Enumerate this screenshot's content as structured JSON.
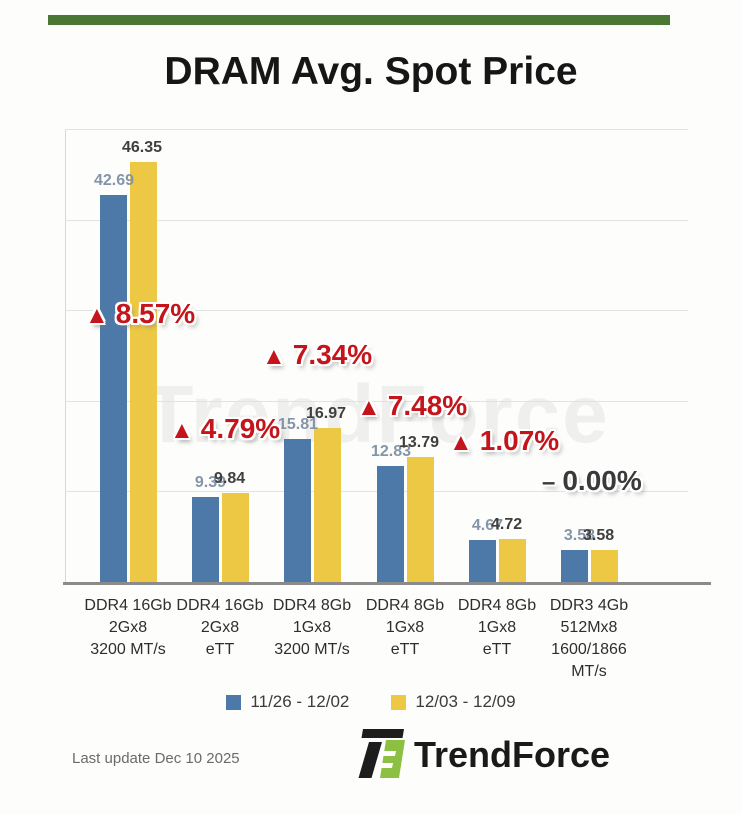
{
  "page": {
    "top_bar_color": "#4a7733",
    "background_color": "#fdfdfb"
  },
  "title": "DRAM Avg. Spot Price",
  "watermark": "TrendForce",
  "chart_data": {
    "type": "bar",
    "title": "DRAM Avg. Spot Price",
    "xlabel": "",
    "ylabel": "",
    "ylim": [
      0,
      50
    ],
    "grid": true,
    "grid_step": 10,
    "legend_position": "bottom",
    "categories": [
      [
        "DDR4 16Gb",
        "2Gx8",
        "3200 MT/s"
      ],
      [
        "DDR4 16Gb",
        "2Gx8",
        "eTT"
      ],
      [
        "DDR4 8Gb",
        "1Gx8",
        "3200 MT/s"
      ],
      [
        "DDR4 8Gb",
        "1Gx8",
        "eTT"
      ],
      [
        "DDR4 8Gb",
        "1Gx8",
        "eTT"
      ],
      [
        "DDR3 4Gb",
        "512Mx8",
        "1600/1866",
        "MT/s"
      ]
    ],
    "series": [
      {
        "name": "11/26 - 12/02",
        "color": "#4d79a8",
        "label_color": "#8595a9",
        "values": [
          42.69,
          9.39,
          15.81,
          12.83,
          4.67,
          3.58
        ],
        "value_labels": [
          "42.69",
          "9.39",
          "15.81",
          "12.83",
          "4.67",
          "3.58"
        ]
      },
      {
        "name": "12/03 - 12/09",
        "color": "#ecc844",
        "label_color": "#3f3f3f",
        "values": [
          46.35,
          9.84,
          16.97,
          13.79,
          4.72,
          3.58
        ],
        "value_labels": [
          "46.35",
          "9.84",
          "16.97",
          "13.79",
          "4.72",
          "3.58"
        ]
      }
    ],
    "change_labels": [
      {
        "prefix": "▲",
        "text": "8.57%",
        "color": "#c3151b"
      },
      {
        "prefix": "▲",
        "text": "4.79%",
        "color": "#c3151b"
      },
      {
        "prefix": "▲",
        "text": "7.34%",
        "color": "#c3151b"
      },
      {
        "prefix": "▲",
        "text": "7.48%",
        "color": "#c3151b"
      },
      {
        "prefix": "▲",
        "text": "1.07%",
        "color": "#c3151b"
      },
      {
        "prefix": "–",
        "text": "0.00%",
        "color": "#3a3a3a"
      }
    ]
  },
  "legend": {
    "items": [
      {
        "label": "11/26 - 12/02",
        "color": "#4d79a8"
      },
      {
        "label": "12/03 - 12/09",
        "color": "#ecc844"
      }
    ]
  },
  "footer": {
    "last_update": "Last update Dec 10 2025",
    "brand": "TrendForce"
  }
}
